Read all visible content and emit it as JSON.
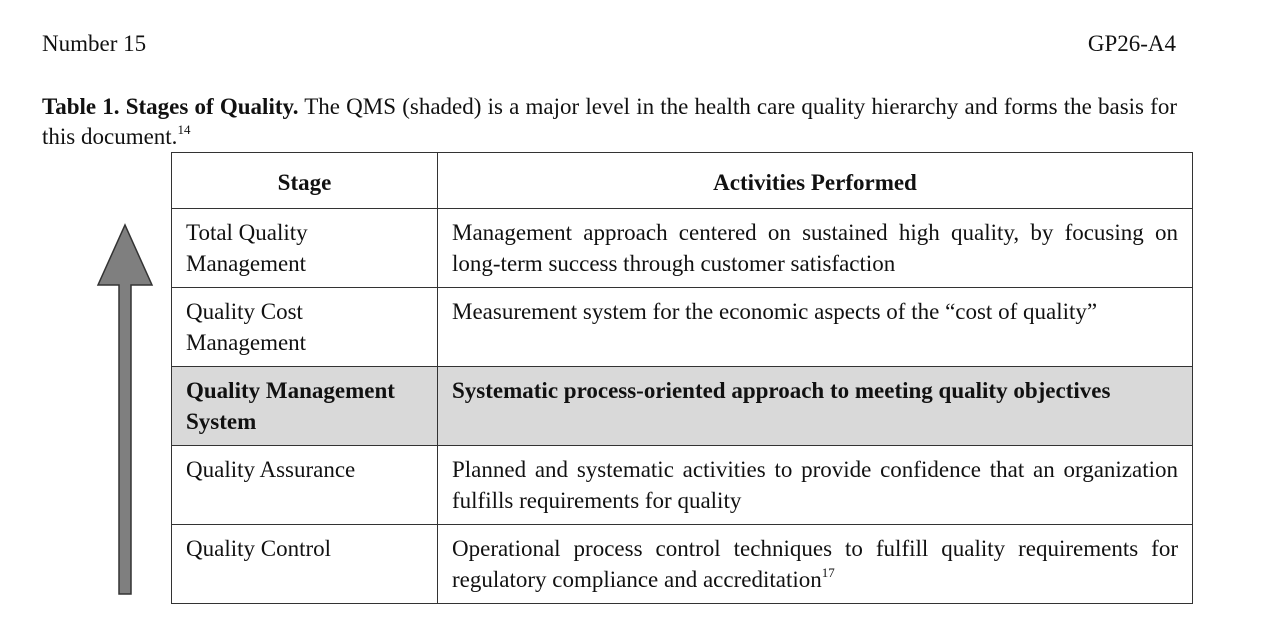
{
  "header": {
    "left": "Number 15",
    "right": "GP26-A4"
  },
  "caption": {
    "label": "Table 1. Stages of Quality.",
    "text": " The QMS (shaded) is a major level in the health care quality hierarchy and forms the basis for this document.",
    "ref": "14"
  },
  "table": {
    "headers": {
      "stage": "Stage",
      "activities": "Activities Performed"
    },
    "rows": [
      {
        "stage": "Total Quality Management",
        "activities": "Management approach centered on sustained high quality, by focusing on long-term success through customer satisfaction",
        "shaded": false
      },
      {
        "stage": "Quality Cost Management",
        "activities": "Measurement system for the economic aspects of the “cost of quality”",
        "shaded": false
      },
      {
        "stage": "Quality Management System",
        "activities": "Systematic process-oriented approach to meeting quality objectives",
        "shaded": true
      },
      {
        "stage": "Quality Assurance",
        "activities": "Planned and systematic activities to provide confidence that an organization fulfills requirements for quality",
        "shaded": false
      },
      {
        "stage": "Quality Control",
        "activities": "Operational process control techniques to fulfill quality requirements for regulatory compliance and accreditation",
        "ref": "17",
        "shaded": false
      }
    ]
  },
  "colors": {
    "shade": "#d9d9d9",
    "arrow_fill": "#7f7f7f",
    "arrow_stroke": "#333333"
  },
  "icons": {
    "arrow": "up-arrow-icon"
  }
}
